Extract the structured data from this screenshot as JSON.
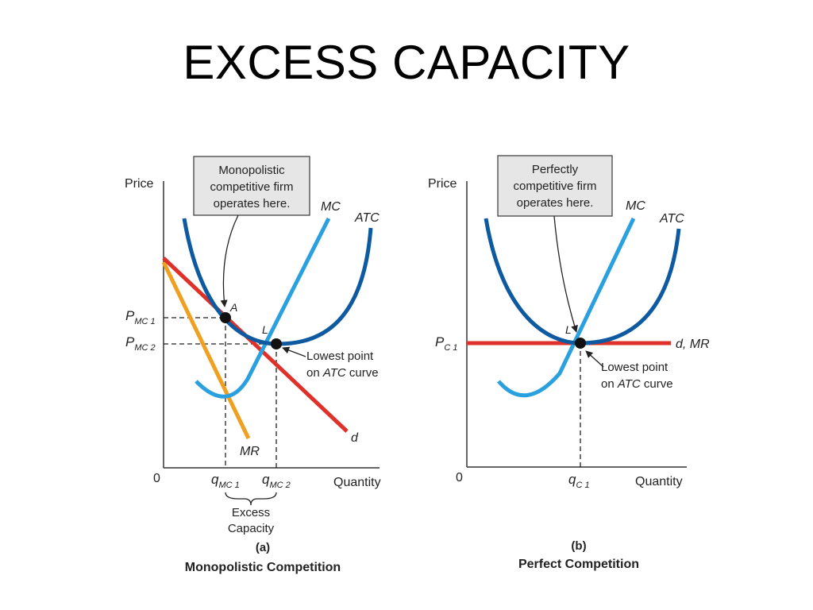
{
  "title": "EXCESS CAPACITY",
  "colors": {
    "atc": "#0d5aa0",
    "mc": "#2aa0de",
    "demand": "#e0302a",
    "mr": "#f0a020",
    "callout_bg": "#e6e6e6"
  },
  "panel_a": {
    "caption_letter": "(a)",
    "caption": "Monopolistic Competition",
    "y_axis_label": "Price",
    "x_axis_label": "Quantity",
    "origin": "0",
    "callout": [
      "Monopolistic",
      "competitive firm",
      "operates here."
    ],
    "curve_mc": "MC",
    "curve_atc": "ATC",
    "curve_d": "d",
    "curve_mr": "MR",
    "point_a": "A",
    "point_l": "L",
    "p1_main": "P",
    "p1_sub": "MC 1",
    "p2_main": "P",
    "p2_sub": "MC 2",
    "q1_main": "q",
    "q1_sub": "MC 1",
    "q2_main": "q",
    "q2_sub": "MC 2",
    "lowest_line1": "Lowest point",
    "lowest_line2_pre": "on ",
    "lowest_line2_it": "ATC",
    "lowest_line2_post": " curve",
    "excess_line1": "Excess",
    "excess_line2": "Capacity"
  },
  "panel_b": {
    "caption_letter": "(b)",
    "caption": "Perfect Competition",
    "y_axis_label": "Price",
    "x_axis_label": "Quantity",
    "origin": "0",
    "callout": [
      "Perfectly",
      "competitive firm",
      "operates here."
    ],
    "curve_mc": "MC",
    "curve_atc": "ATC",
    "curve_dmr": "d, MR",
    "point_l": "L",
    "p_main": "P",
    "p_sub": "C 1",
    "q_main": "q",
    "q_sub": "C 1",
    "lowest_line1": "Lowest point",
    "lowest_line2_pre": "on ",
    "lowest_line2_it": "ATC",
    "lowest_line2_post": " curve"
  }
}
